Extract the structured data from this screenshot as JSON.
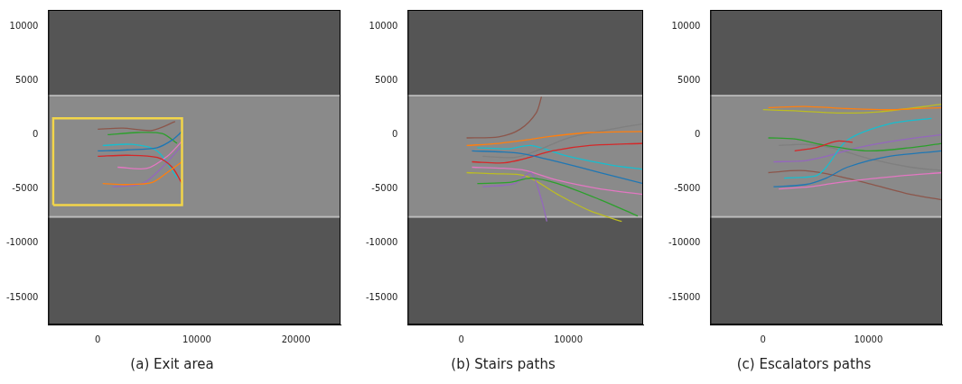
{
  "chart_data": [
    {
      "type": "line",
      "title": "(a) Exit area",
      "xlim": [
        -5000,
        24500
      ],
      "ylim": [
        -17500,
        11500
      ],
      "xticks": [
        0,
        10000,
        20000
      ],
      "yticks": [
        -15000,
        -10000,
        -5000,
        0,
        5000,
        10000
      ],
      "grid": false,
      "rectangle": {
        "x": [
          -4500,
          8500
        ],
        "y": [
          -6500,
          1500
        ],
        "color": "#f2d54a"
      },
      "series": [
        {
          "color": "#1f77b4",
          "x": [
            0,
            3000,
            6000,
            7500,
            8500
          ],
          "y": [
            -1500,
            -1400,
            -1200,
            -500,
            300
          ]
        },
        {
          "color": "#ff7f0e",
          "x": [
            500,
            3000,
            5500,
            7000,
            8500
          ],
          "y": [
            -4500,
            -4600,
            -4400,
            -3500,
            -2500
          ]
        },
        {
          "color": "#2ca02c",
          "x": [
            1000,
            4000,
            6500,
            8000
          ],
          "y": [
            0,
            200,
            100,
            -800
          ]
        },
        {
          "color": "#d62728",
          "x": [
            0,
            3000,
            6000,
            7500,
            8500
          ],
          "y": [
            -2000,
            -1900,
            -2100,
            -3000,
            -4500
          ]
        },
        {
          "color": "#9467bd",
          "x": [
            1500,
            4500,
            6500,
            8500
          ],
          "y": [
            -4800,
            -4500,
            -3000,
            -1000
          ]
        },
        {
          "color": "#8c564b",
          "x": [
            0,
            2500,
            5500,
            7800
          ],
          "y": [
            500,
            600,
            400,
            1200
          ]
        },
        {
          "color": "#e377c2",
          "x": [
            2000,
            5000,
            7000,
            8500
          ],
          "y": [
            -3000,
            -3100,
            -2000,
            -600
          ]
        },
        {
          "color": "#17becf",
          "x": [
            500,
            3500,
            6000,
            8000
          ],
          "y": [
            -1000,
            -900,
            -1500,
            -4000
          ]
        }
      ]
    },
    {
      "type": "line",
      "title": "(b) Stairs paths",
      "xlim": [
        -5000,
        17000
      ],
      "ylim": [
        -17500,
        11500
      ],
      "xticks": [
        0,
        10000
      ],
      "yticks": [
        -15000,
        -10000,
        -5000,
        0,
        5000,
        10000
      ],
      "grid": false,
      "series": [
        {
          "color": "#1f77b4",
          "x": [
            1000,
            4000,
            6000,
            9000,
            13000,
            17000
          ],
          "y": [
            -1500,
            -1600,
            -1800,
            -2500,
            -3500,
            -4500
          ]
        },
        {
          "color": "#ff7f0e",
          "x": [
            500,
            3500,
            6000,
            8000,
            12000,
            17000
          ],
          "y": [
            -1000,
            -800,
            -500,
            -200,
            200,
            300
          ]
        },
        {
          "color": "#2ca02c",
          "x": [
            1500,
            4500,
            6500,
            9000,
            13000,
            16500
          ],
          "y": [
            -4500,
            -4400,
            -4000,
            -4500,
            -6000,
            -7500
          ]
        },
        {
          "color": "#d62728",
          "x": [
            1000,
            4000,
            6000,
            8500,
            12000,
            17000
          ],
          "y": [
            -2500,
            -2600,
            -2200,
            -1500,
            -1000,
            -800
          ]
        },
        {
          "color": "#9467bd",
          "x": [
            2000,
            5000,
            6500,
            7500,
            8000
          ],
          "y": [
            -4800,
            -4500,
            -3500,
            -6000,
            -8000
          ]
        },
        {
          "color": "#8c564b",
          "x": [
            500,
            3500,
            5500,
            7000,
            7500
          ],
          "y": [
            -300,
            -200,
            500,
            2000,
            3500
          ]
        },
        {
          "color": "#e377c2",
          "x": [
            1000,
            4000,
            6000,
            9000,
            13000,
            17000
          ],
          "y": [
            -3000,
            -3100,
            -3300,
            -4200,
            -5000,
            -5500
          ]
        },
        {
          "color": "#7f7f7f",
          "x": [
            2000,
            5000,
            7000,
            10000,
            14000,
            17000
          ],
          "y": [
            -2000,
            -2100,
            -1500,
            -300,
            500,
            1000
          ]
        },
        {
          "color": "#bcbd22",
          "x": [
            500,
            3000,
            6000,
            9000,
            12000,
            15000
          ],
          "y": [
            -3500,
            -3600,
            -3800,
            -5500,
            -7000,
            -8000
          ]
        },
        {
          "color": "#17becf",
          "x": [
            1500,
            4500,
            6500,
            10000,
            14000,
            17000
          ],
          "y": [
            -1200,
            -1300,
            -1000,
            -2000,
            -2800,
            -3200
          ]
        }
      ]
    },
    {
      "type": "line",
      "title": "(c) Escalators paths",
      "xlim": [
        -5000,
        17000
      ],
      "ylim": [
        -17500,
        11500
      ],
      "xticks": [
        0,
        10000
      ],
      "yticks": [
        -15000,
        -10000,
        -5000,
        0,
        5000,
        10000
      ],
      "grid": false,
      "series": [
        {
          "color": "#ff7f0e",
          "x": [
            500,
            4000,
            8000,
            12000,
            17000
          ],
          "y": [
            2500,
            2600,
            2400,
            2300,
            2500
          ]
        },
        {
          "color": "#bcbd22",
          "x": [
            0,
            3000,
            7000,
            11000,
            17000
          ],
          "y": [
            2300,
            2200,
            2000,
            2100,
            2800
          ]
        },
        {
          "color": "#d62728",
          "x": [
            3000,
            5000,
            7000,
            8500
          ],
          "y": [
            -1500,
            -1200,
            -600,
            -700
          ]
        },
        {
          "color": "#2ca02c",
          "x": [
            500,
            3000,
            6000,
            10000,
            14000,
            17000
          ],
          "y": [
            -300,
            -400,
            -1000,
            -1500,
            -1200,
            -800
          ]
        },
        {
          "color": "#1f77b4",
          "x": [
            1000,
            4000,
            6000,
            8000,
            12000,
            17000
          ],
          "y": [
            -4800,
            -4600,
            -4000,
            -3000,
            -2000,
            -1500
          ]
        },
        {
          "color": "#e377c2",
          "x": [
            1500,
            4500,
            6500,
            9000,
            13000,
            17000
          ],
          "y": [
            -5000,
            -4800,
            -4500,
            -4200,
            -3800,
            -3500
          ]
        },
        {
          "color": "#17becf",
          "x": [
            2000,
            5000,
            6000,
            8000,
            12000,
            16000
          ],
          "y": [
            -4000,
            -3800,
            -3000,
            -500,
            1000,
            1500
          ]
        },
        {
          "color": "#9467bd",
          "x": [
            1000,
            4000,
            6000,
            9000,
            13000,
            17000
          ],
          "y": [
            -2500,
            -2400,
            -2000,
            -1200,
            -500,
            0
          ]
        },
        {
          "color": "#8c564b",
          "x": [
            500,
            3500,
            6000,
            10000,
            14000,
            17000
          ],
          "y": [
            -3500,
            -3300,
            -3600,
            -4500,
            -5500,
            -6000
          ]
        },
        {
          "color": "#7f7f7f",
          "x": [
            1500,
            4000,
            6500,
            10000,
            14000,
            17000
          ],
          "y": [
            -1000,
            -900,
            -1200,
            -2200,
            -3000,
            -3300
          ]
        }
      ]
    }
  ]
}
